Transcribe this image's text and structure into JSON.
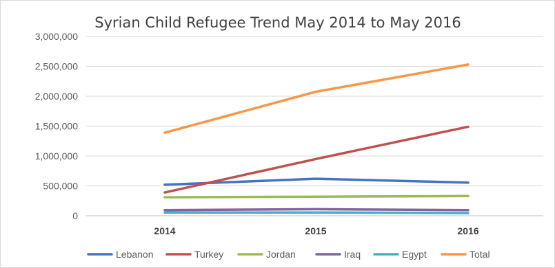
{
  "chart_data": {
    "type": "line",
    "title": "Syrian Child Refugee Trend May 2014 to May 2016",
    "xlabel": "",
    "ylabel": "",
    "categories": [
      "2014",
      "2015",
      "2016"
    ],
    "ylim": [
      0,
      3000000
    ],
    "yticks": [
      0,
      500000,
      1000000,
      1500000,
      2000000,
      2500000,
      3000000
    ],
    "ytick_labels": [
      "0",
      "500,000",
      "1,000,000",
      "1,500,000",
      "2,000,000",
      "2,500,000",
      "3,000,000"
    ],
    "grid": true,
    "legend_position": "bottom",
    "series": [
      {
        "name": "Lebanon",
        "color": "#4472c4",
        "values": [
          520000,
          620000,
          555000
        ]
      },
      {
        "name": "Turkey",
        "color": "#c0504d",
        "values": [
          390000,
          950000,
          1490000
        ]
      },
      {
        "name": "Jordan",
        "color": "#9bbb59",
        "values": [
          310000,
          320000,
          330000
        ]
      },
      {
        "name": "Iraq",
        "color": "#8064a2",
        "values": [
          95000,
          110000,
          95000
        ]
      },
      {
        "name": "Egypt",
        "color": "#4bacc6",
        "values": [
          55000,
          55000,
          45000
        ]
      },
      {
        "name": "Total",
        "color": "#f79646",
        "values": [
          1390000,
          2075000,
          2530000
        ]
      }
    ]
  }
}
